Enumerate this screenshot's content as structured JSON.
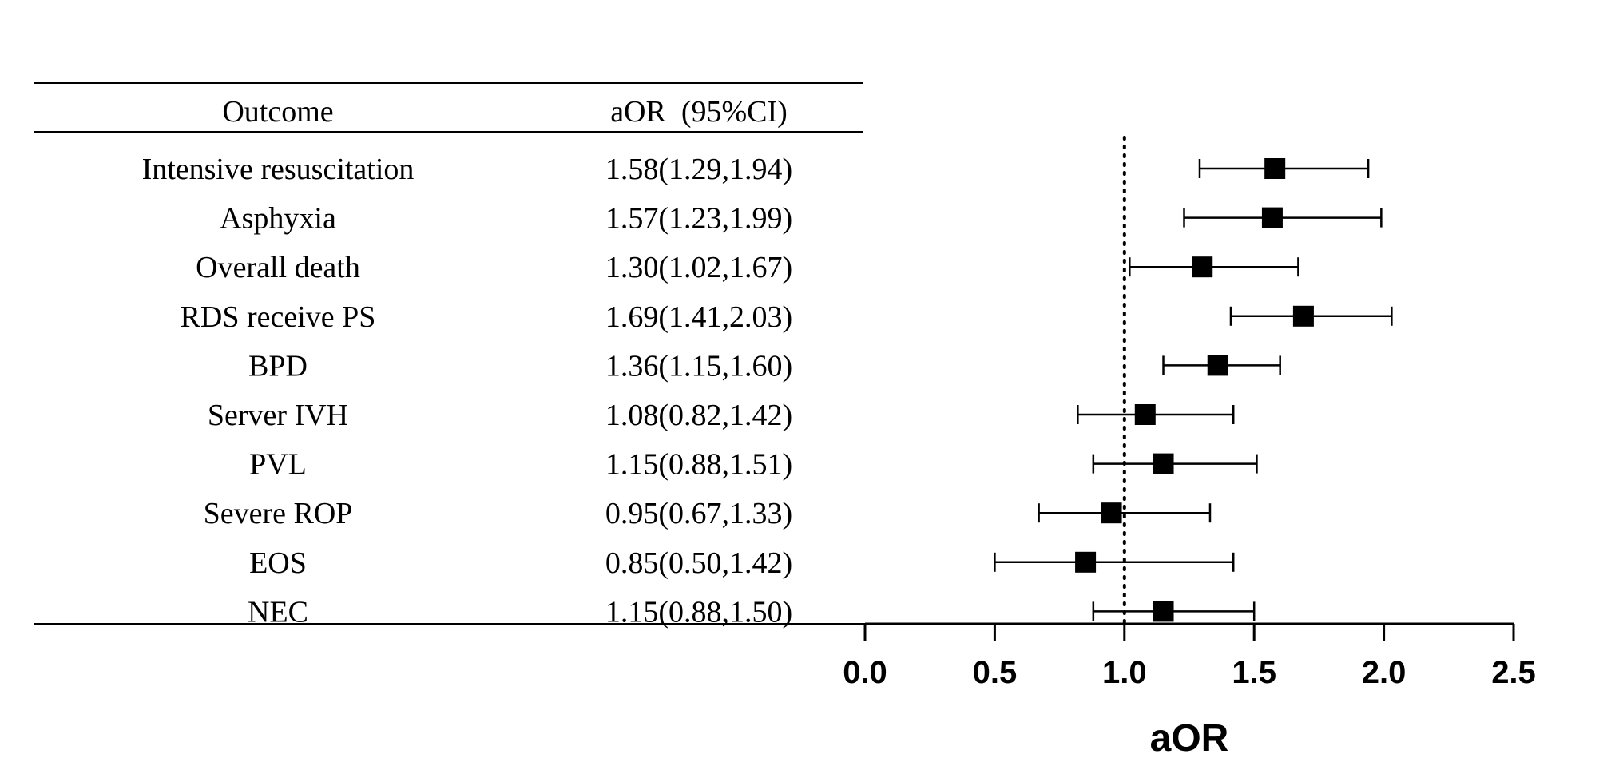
{
  "chart_data": {
    "type": "scatter",
    "subtype": "forest-plot",
    "table_headers": {
      "outcome": "Outcome",
      "estimate": "aOR  (95%CI)"
    },
    "rows": [
      {
        "outcome": "Intensive resuscitation",
        "label": "1.58(1.29,1.94)",
        "aor": 1.58,
        "lower": 1.29,
        "upper": 1.94
      },
      {
        "outcome": "Asphyxia",
        "label": "1.57(1.23,1.99)",
        "aor": 1.57,
        "lower": 1.23,
        "upper": 1.99
      },
      {
        "outcome": "Overall death",
        "label": "1.30(1.02,1.67)",
        "aor": 1.3,
        "lower": 1.02,
        "upper": 1.67
      },
      {
        "outcome": "RDS receive PS",
        "label": "1.69(1.41,2.03)",
        "aor": 1.69,
        "lower": 1.41,
        "upper": 2.03
      },
      {
        "outcome": "BPD",
        "label": "1.36(1.15,1.60)",
        "aor": 1.36,
        "lower": 1.15,
        "upper": 1.6
      },
      {
        "outcome": "Server IVH",
        "label": "1.08(0.82,1.42)",
        "aor": 1.08,
        "lower": 0.82,
        "upper": 1.42
      },
      {
        "outcome": "PVL",
        "label": "1.15(0.88,1.51)",
        "aor": 1.15,
        "lower": 0.88,
        "upper": 1.51
      },
      {
        "outcome": "Severe ROP",
        "label": "0.95(0.67,1.33)",
        "aor": 0.95,
        "lower": 0.67,
        "upper": 1.33
      },
      {
        "outcome": "EOS",
        "label": "0.85(0.50,1.42)",
        "aor": 0.85,
        "lower": 0.5,
        "upper": 1.42
      },
      {
        "outcome": "NEC",
        "label": "1.15(0.88,1.50)",
        "aor": 1.15,
        "lower": 0.88,
        "upper": 1.5
      }
    ],
    "xlabel": "aOR",
    "xlim": [
      0,
      2.5
    ],
    "xticks": [
      0.0,
      0.5,
      1.0,
      1.5,
      2.0,
      2.5
    ],
    "xtick_labels": [
      "0.0",
      "0.5",
      "1.0",
      "1.5",
      "2.0",
      "2.5"
    ],
    "reference_line": 1.0,
    "grid": false,
    "legend": "none",
    "marker_color": "#000000"
  }
}
